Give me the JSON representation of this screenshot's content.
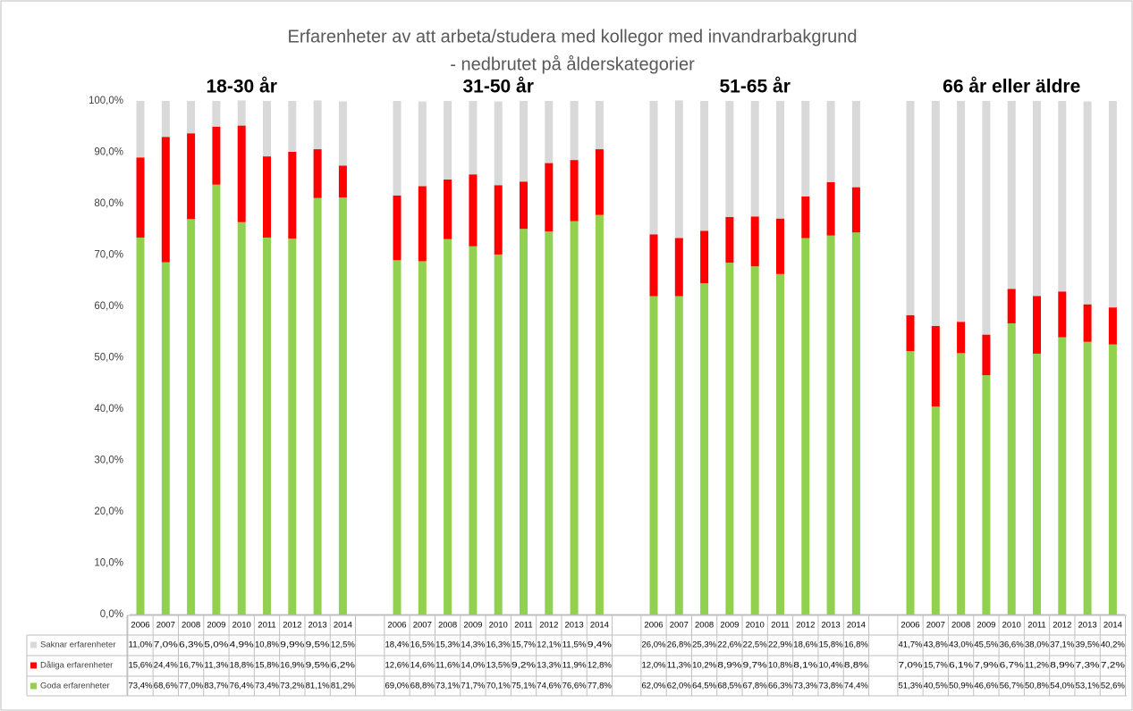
{
  "chart_data": {
    "type": "stacked_bar",
    "title": "Erfarenheter av att arbeta/studera med kollegor med invandrarbakgrund",
    "subtitle": "- nedbrutet på ålderskategorier",
    "groups": [
      "18-30 år",
      "31-50 år",
      "51-65 år",
      "66 år eller äldre"
    ],
    "categories": [
      "2006",
      "2007",
      "2008",
      "2009",
      "2010",
      "2011",
      "2012",
      "2013",
      "2014",
      "2006",
      "2007",
      "2008",
      "2009",
      "2010",
      "2011",
      "2012",
      "2013",
      "2014",
      "2006",
      "2007",
      "2008",
      "2009",
      "2010",
      "2011",
      "2012",
      "2013",
      "2014",
      "2006",
      "2007",
      "2008",
      "2009",
      "2010",
      "2011",
      "2012",
      "2013",
      "2014"
    ],
    "series": [
      {
        "name": "Saknar erfarenheter",
        "color": "#d9d9d9",
        "values": [
          11.0,
          7.0,
          6.3,
          5.0,
          4.9,
          10.8,
          9.9,
          9.5,
          12.5,
          18.4,
          16.5,
          15.3,
          14.3,
          16.3,
          15.7,
          12.1,
          11.5,
          9.4,
          26.0,
          26.8,
          25.3,
          22.6,
          22.5,
          22.9,
          18.6,
          15.8,
          16.8,
          41.7,
          43.8,
          43.0,
          45.5,
          36.6,
          38.0,
          37.1,
          39.5,
          40.2
        ],
        "value_labels": [
          "11,0%",
          "7,0%",
          "6,3%",
          "5,0%",
          "4,9%",
          "10,8%",
          "9,9%",
          "9,5%",
          "12,5%",
          "18,4%",
          "16,5%",
          "15,3%",
          "14,3%",
          "16,3%",
          "15,7%",
          "12,1%",
          "11,5%",
          "9,4%",
          "26,0%",
          "26,8%",
          "25,3%",
          "22,6%",
          "22,5%",
          "22,9%",
          "18,6%",
          "15,8%",
          "16,8%",
          "41,7%",
          "43,8%",
          "43,0%",
          "45,5%",
          "36,6%",
          "38,0%",
          "37,1%",
          "39,5%",
          "40,2%"
        ]
      },
      {
        "name": "Dåliga erfarenheter",
        "color": "#ff0000",
        "values": [
          15.6,
          24.4,
          16.7,
          11.3,
          18.8,
          15.8,
          16.9,
          9.5,
          6.2,
          12.6,
          14.6,
          11.6,
          14.0,
          13.5,
          9.2,
          13.3,
          11.9,
          12.8,
          12.0,
          11.3,
          10.2,
          8.9,
          9.7,
          10.8,
          8.1,
          10.4,
          8.8,
          7.0,
          15.7,
          6.1,
          7.9,
          6.7,
          11.2,
          8.9,
          7.3,
          7.2
        ],
        "value_labels": [
          "15,6%",
          "24,4%",
          "16,7%",
          "11,3%",
          "18,8%",
          "15,8%",
          "16,9%",
          "9,5%",
          "6,2%",
          "12,6%",
          "14,6%",
          "11,6%",
          "14,0%",
          "13,5%",
          "9,2%",
          "13,3%",
          "11,9%",
          "12,8%",
          "12,0%",
          "11,3%",
          "10,2%",
          "8,9%",
          "9,7%",
          "10,8%",
          "8,1%",
          "10,4%",
          "8,8%",
          "7,0%",
          "15,7%",
          "6,1%",
          "7,9%",
          "6,7%",
          "11,2%",
          "8,9%",
          "7,3%",
          "7,2%"
        ]
      },
      {
        "name": "Goda erfarenheter",
        "color": "#92d050",
        "values": [
          73.4,
          68.6,
          77.0,
          83.7,
          76.4,
          73.4,
          73.2,
          81.1,
          81.2,
          69.0,
          68.8,
          73.1,
          71.7,
          70.1,
          75.1,
          74.6,
          76.6,
          77.8,
          62.0,
          62.0,
          64.5,
          68.5,
          67.8,
          66.3,
          73.3,
          73.8,
          74.4,
          51.3,
          40.5,
          50.9,
          46.6,
          56.7,
          50.8,
          54.0,
          53.1,
          52.6
        ],
        "value_labels": [
          "73,4%",
          "68,6%",
          "77,0%",
          "83,7%",
          "76,4%",
          "73,4%",
          "73,2%",
          "81,1%",
          "81,2%",
          "69,0%",
          "68,8%",
          "73,1%",
          "71,7%",
          "70,1%",
          "75,1%",
          "74,6%",
          "76,6%",
          "77,8%",
          "62,0%",
          "62,0%",
          "64,5%",
          "68,5%",
          "67,8%",
          "66,3%",
          "73,3%",
          "73,8%",
          "74,4%",
          "51,3%",
          "40,5%",
          "50,9%",
          "46,6%",
          "56,7%",
          "50,8%",
          "54,0%",
          "53,1%",
          "52,6%"
        ]
      }
    ],
    "ylim": [
      0,
      100
    ],
    "yticks": [
      {
        "value": 0,
        "label": "0,0%"
      },
      {
        "value": 10,
        "label": "10,0%"
      },
      {
        "value": 20,
        "label": "20,0%"
      },
      {
        "value": 30,
        "label": "30,0%"
      },
      {
        "value": 40,
        "label": "40,0%"
      },
      {
        "value": 50,
        "label": "50,0%"
      },
      {
        "value": 60,
        "label": "60,0%"
      },
      {
        "value": 70,
        "label": "70,0%"
      },
      {
        "value": 80,
        "label": "80,0%"
      },
      {
        "value": 90,
        "label": "90,0%"
      },
      {
        "value": 100,
        "label": "100,0%"
      }
    ]
  }
}
